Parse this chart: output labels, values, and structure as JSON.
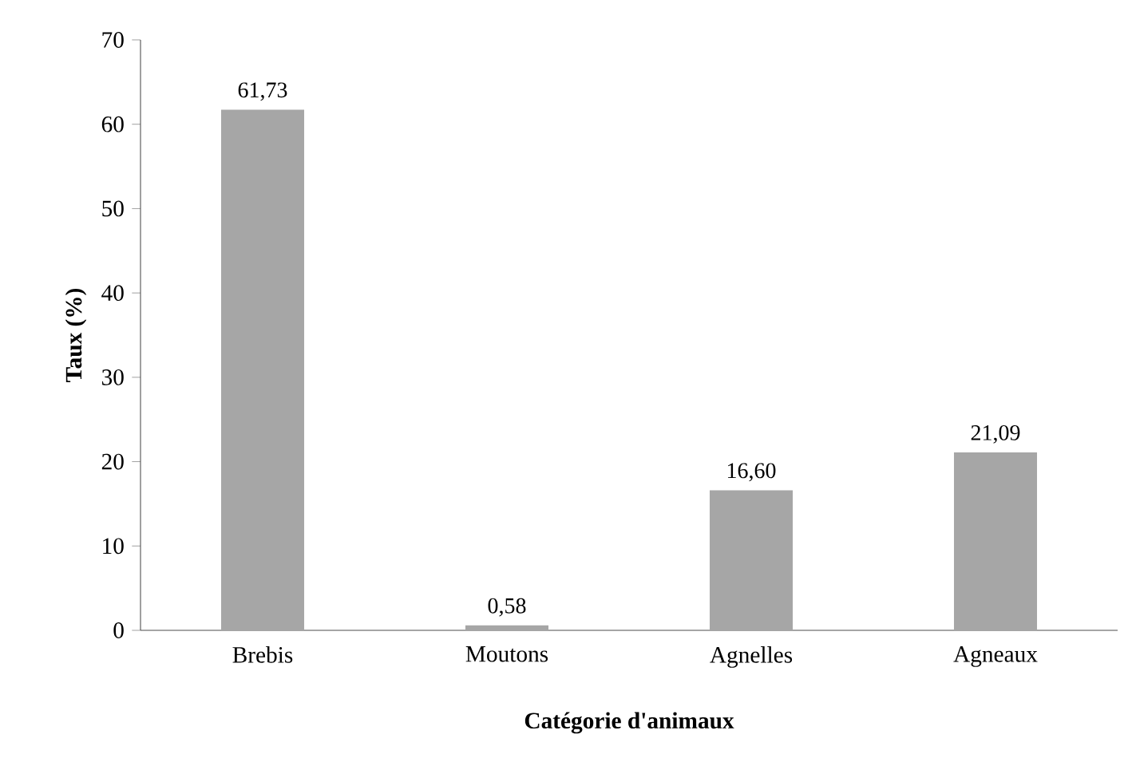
{
  "chart_data": {
    "type": "bar",
    "xlabel": "Catégorie d'animaux",
    "ylabel": "Taux (%)",
    "categories": [
      "Brebis",
      "Moutons",
      "Agnelles",
      "Agneaux"
    ],
    "values": [
      61.73,
      0.58,
      16.6,
      21.09
    ],
    "value_labels": [
      "61,73",
      "0,58",
      "16,60",
      "21,09"
    ],
    "color": "#a6a6a6",
    "ylim": [
      0,
      70
    ],
    "yticks": [
      0,
      10,
      20,
      30,
      40,
      50,
      60,
      70
    ]
  }
}
